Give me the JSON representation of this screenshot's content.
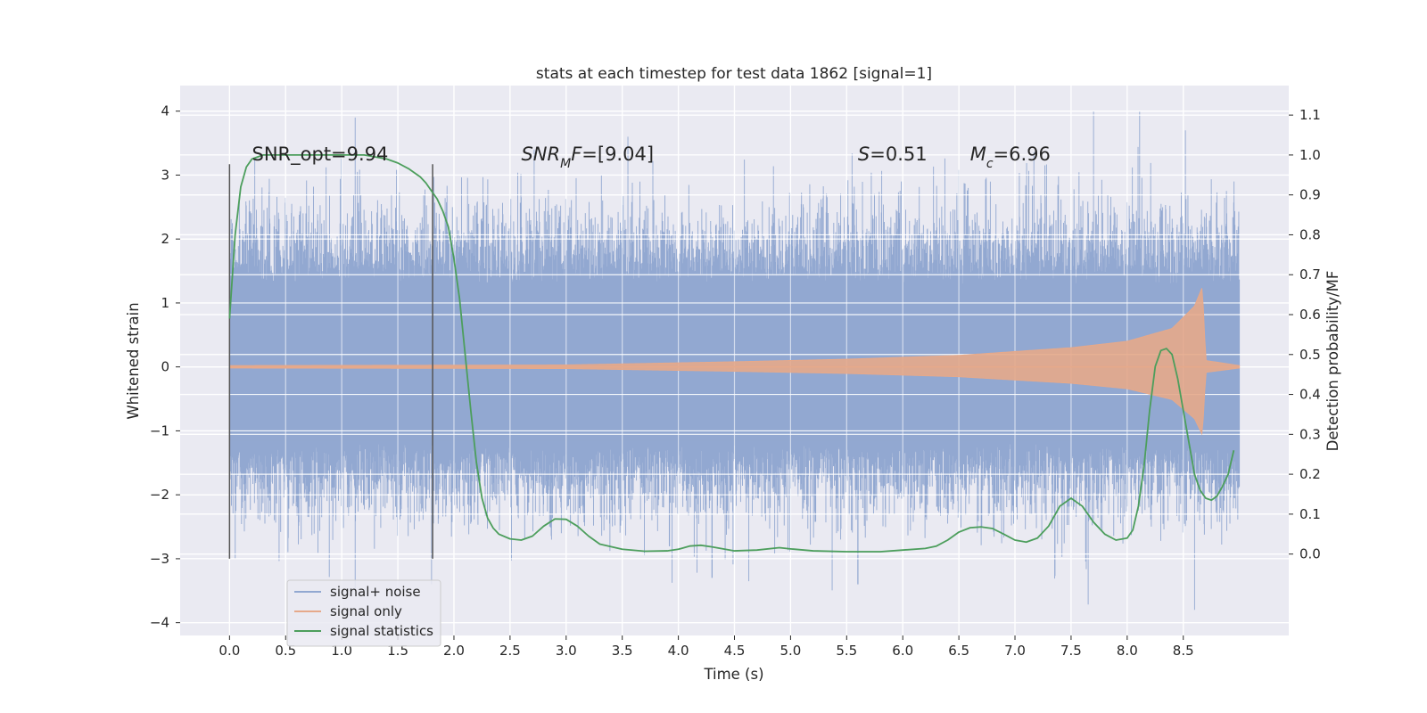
{
  "chart_data": {
    "type": "line",
    "title": "stats at each timestep for test data 1862 [signal=1]",
    "xlabel": "Time (s)",
    "ylabel": "Whitened strain",
    "y2label": "Detection probability/MF",
    "xlim": [
      -0.44,
      9.44
    ],
    "ylim": [
      -4.2,
      4.4
    ],
    "y2lim": [
      -0.204,
      1.174
    ],
    "x_ticks": [
      0.0,
      0.5,
      1.0,
      1.5,
      2.0,
      2.5,
      3.0,
      3.5,
      4.0,
      4.5,
      5.0,
      5.5,
      6.0,
      6.5,
      7.0,
      7.5,
      8.0,
      8.5
    ],
    "x_tick_labels": [
      "0.0",
      "0.5",
      "1.0",
      "1.5",
      "2.0",
      "2.5",
      "3.0",
      "3.5",
      "4.0",
      "4.5",
      "5.0",
      "5.5",
      "6.0",
      "6.5",
      "7.0",
      "7.5",
      "8.0",
      "8.5"
    ],
    "y_ticks": [
      -4,
      -3,
      -2,
      -1,
      0,
      1,
      2,
      3,
      4
    ],
    "y_tick_labels": [
      "−4",
      "−3",
      "−2",
      "−1",
      "0",
      "1",
      "2",
      "3",
      "4"
    ],
    "y2_ticks": [
      0.0,
      0.1,
      0.2,
      0.3,
      0.4,
      0.5,
      0.6,
      0.7,
      0.8,
      0.9,
      1.0,
      1.1
    ],
    "y2_tick_labels": [
      "0.0",
      "0.1",
      "0.2",
      "0.3",
      "0.4",
      "0.5",
      "0.6",
      "0.7",
      "0.8",
      "0.9",
      "1.0",
      "1.1"
    ],
    "grid": true,
    "legend_position": "lower-left",
    "series": [
      {
        "name": "signal+ noise",
        "color": "#92a8d1",
        "axis": "left",
        "x_range": [
          0.0,
          9.0
        ],
        "typical_envelope": [
          -1.3,
          1.8
        ],
        "peaks": [
          [
            1.12,
            3.9
          ],
          [
            1.12,
            -3.5
          ],
          [
            7.7,
            4.0
          ],
          [
            8.52,
            3.7
          ],
          [
            8.6,
            -3.8
          ],
          [
            3.55,
            3.6
          ],
          [
            5.6,
            -3.4
          ],
          [
            4.3,
            -3.3
          ],
          [
            1.8,
            -3.4
          ],
          [
            0.05,
            -3.0
          ]
        ]
      },
      {
        "name": "signal only",
        "color": "#e6a98a",
        "axis": "left",
        "x_range": [
          0.0,
          9.0
        ],
        "merger_time": 8.67,
        "envelope": [
          [
            0.0,
            0.02
          ],
          [
            3.0,
            0.03
          ],
          [
            4.5,
            0.08
          ],
          [
            5.5,
            0.12
          ],
          [
            6.5,
            0.18
          ],
          [
            7.5,
            0.3
          ],
          [
            8.0,
            0.4
          ],
          [
            8.4,
            0.6
          ],
          [
            8.6,
            0.95
          ],
          [
            8.67,
            1.25
          ],
          [
            8.7,
            0.1
          ],
          [
            9.0,
            0.02
          ]
        ]
      },
      {
        "name": "signal statistics",
        "color": "#4c9e5c",
        "axis": "right",
        "x": [
          0.0,
          0.05,
          0.1,
          0.15,
          0.2,
          0.3,
          0.5,
          0.8,
          1.2,
          1.4,
          1.5,
          1.6,
          1.7,
          1.75,
          1.8,
          1.85,
          1.9,
          1.95,
          2.0,
          2.05,
          2.1,
          2.15,
          2.2,
          2.25,
          2.3,
          2.35,
          2.4,
          2.5,
          2.6,
          2.7,
          2.8,
          2.9,
          3.0,
          3.1,
          3.2,
          3.3,
          3.5,
          3.7,
          3.9,
          4.0,
          4.1,
          4.2,
          4.3,
          4.5,
          4.7,
          4.9,
          5.0,
          5.2,
          5.5,
          5.8,
          6.0,
          6.2,
          6.3,
          6.4,
          6.5,
          6.6,
          6.7,
          6.8,
          6.9,
          7.0,
          7.1,
          7.2,
          7.3,
          7.4,
          7.5,
          7.6,
          7.7,
          7.8,
          7.9,
          8.0,
          8.05,
          8.1,
          8.15,
          8.2,
          8.25,
          8.3,
          8.35,
          8.4,
          8.45,
          8.5,
          8.55,
          8.6,
          8.65,
          8.7,
          8.75,
          8.8,
          8.85,
          8.9,
          8.95
        ],
        "y": [
          0.59,
          0.8,
          0.92,
          0.97,
          0.99,
          1.0,
          1.0,
          1.0,
          1.0,
          0.99,
          0.98,
          0.965,
          0.945,
          0.93,
          0.91,
          0.89,
          0.86,
          0.82,
          0.74,
          0.64,
          0.5,
          0.36,
          0.23,
          0.14,
          0.09,
          0.065,
          0.05,
          0.038,
          0.035,
          0.045,
          0.07,
          0.088,
          0.087,
          0.07,
          0.045,
          0.025,
          0.012,
          0.007,
          0.008,
          0.012,
          0.02,
          0.022,
          0.018,
          0.008,
          0.01,
          0.016,
          0.013,
          0.008,
          0.006,
          0.006,
          0.01,
          0.014,
          0.02,
          0.035,
          0.055,
          0.066,
          0.068,
          0.064,
          0.05,
          0.035,
          0.03,
          0.04,
          0.07,
          0.12,
          0.14,
          0.12,
          0.08,
          0.05,
          0.035,
          0.04,
          0.06,
          0.12,
          0.22,
          0.36,
          0.47,
          0.51,
          0.515,
          0.5,
          0.44,
          0.36,
          0.28,
          0.2,
          0.16,
          0.14,
          0.135,
          0.145,
          0.17,
          0.2,
          0.26
        ]
      }
    ],
    "vlines": [
      {
        "x": 0.0,
        "ymin": -3.0,
        "ymax": 3.17
      },
      {
        "x": 1.81,
        "ymin": -3.0,
        "ymax": 3.17
      }
    ],
    "annotations": [
      {
        "id": "snr-opt",
        "x": 0.2,
        "y": 3.23,
        "parts": [
          {
            "t": "SNR_opt=9.94",
            "s": "n"
          }
        ]
      },
      {
        "id": "snr-mf",
        "x": 2.6,
        "y": 3.23,
        "parts": [
          {
            "t": "SNR",
            "s": "i"
          },
          {
            "t": "M",
            "s": "sub"
          },
          {
            "t": "F",
            "s": "i"
          },
          {
            "t": "=[9.04]",
            "s": "n"
          }
        ]
      },
      {
        "id": "s-value",
        "x": 5.6,
        "y": 3.23,
        "parts": [
          {
            "t": "S",
            "s": "i"
          },
          {
            "t": "=0.51",
            "s": "n"
          }
        ]
      },
      {
        "id": "mc-value",
        "x": 6.6,
        "y": 3.23,
        "parts": [
          {
            "t": "M",
            "s": "i"
          },
          {
            "t": "c",
            "s": "sub"
          },
          {
            "t": "=6.96",
            "s": "n"
          }
        ]
      }
    ]
  }
}
